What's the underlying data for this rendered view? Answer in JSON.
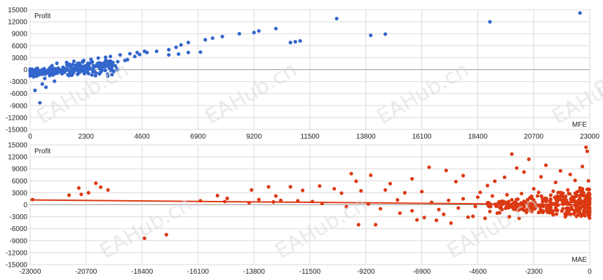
{
  "watermark_text": "EAHub.cn",
  "chart_data": [
    {
      "type": "scatter",
      "xlabel": "MFE",
      "ylabel": "Profit",
      "xlim": [
        0,
        23000
      ],
      "ylim": [
        -15000,
        15000
      ],
      "x_ticks": [
        "0",
        "2300",
        "4600",
        "6900",
        "9200",
        "11500",
        "13800",
        "16100",
        "18400",
        "20700",
        "23000"
      ],
      "y_ticks": [
        "15000",
        "12000",
        "9000",
        "6000",
        "3000",
        "0",
        "-3000",
        "-6000",
        "-9000",
        "-12000",
        "-15000"
      ],
      "grid": true,
      "color": "#3366cc",
      "points": [
        [
          220,
          -400
        ],
        [
          300,
          -300
        ],
        [
          350,
          -350
        ],
        [
          500,
          -600
        ],
        [
          700,
          -800
        ],
        [
          900,
          -900
        ],
        [
          600,
          -2200
        ],
        [
          800,
          -1500
        ],
        [
          200,
          -5200
        ],
        [
          500,
          -3600
        ],
        [
          1000,
          -2900
        ],
        [
          400,
          -8300
        ],
        [
          650,
          -4400
        ],
        [
          300,
          -1100
        ],
        [
          150,
          -1800
        ],
        [
          1200,
          -500
        ],
        [
          1600,
          -200
        ],
        [
          1900,
          500
        ],
        [
          1300,
          -1000
        ],
        [
          900,
          1000
        ],
        [
          2100,
          800
        ],
        [
          2600,
          1000
        ],
        [
          3000,
          1200
        ],
        [
          3600,
          2000
        ],
        [
          4000,
          2500
        ],
        [
          4300,
          3300
        ],
        [
          4500,
          3800
        ],
        [
          4800,
          4300
        ],
        [
          5200,
          4600
        ],
        [
          5700,
          5000
        ],
        [
          6000,
          5600
        ],
        [
          6200,
          6200
        ],
        [
          6500,
          6800
        ],
        [
          7200,
          7500
        ],
        [
          7500,
          7900
        ],
        [
          7900,
          8300
        ],
        [
          8600,
          9000
        ],
        [
          9200,
          9300
        ],
        [
          9400,
          9700
        ],
        [
          10100,
          10300
        ],
        [
          5700,
          3700
        ],
        [
          6100,
          3900
        ],
        [
          6500,
          4300
        ],
        [
          7000,
          4400
        ],
        [
          3900,
          2300
        ],
        [
          3400,
          1800
        ],
        [
          2800,
          1500
        ],
        [
          2400,
          1200
        ],
        [
          10700,
          6800
        ],
        [
          10900,
          7000
        ],
        [
          11100,
          7200
        ],
        [
          12600,
          12800
        ],
        [
          14000,
          8600
        ],
        [
          14600,
          8900
        ],
        [
          18900,
          12000
        ],
        [
          22600,
          14200
        ],
        [
          1100,
          1600
        ],
        [
          1500,
          1800
        ],
        [
          1800,
          2100
        ],
        [
          2200,
          2300
        ],
        [
          2500,
          2600
        ],
        [
          2800,
          2900
        ],
        [
          3100,
          3100
        ],
        [
          3300,
          3300
        ],
        [
          3700,
          3700
        ],
        [
          4100,
          4000
        ],
        [
          4400,
          4300
        ],
        [
          4700,
          4600
        ]
      ]
    },
    {
      "type": "scatter",
      "xlabel": "MAE",
      "ylabel": "Profit",
      "xlim": [
        -23000,
        0
      ],
      "ylim": [
        -15000,
        15000
      ],
      "x_ticks": [
        "-23000",
        "-20700",
        "-18400",
        "-16100",
        "-13800",
        "-11500",
        "-9200",
        "-6900",
        "-4600",
        "-2300",
        "0"
      ],
      "y_ticks": [
        "15000",
        "12000",
        "9000",
        "6000",
        "3000",
        "0",
        "-3000",
        "-6000",
        "-9000",
        "-12000",
        "-15000"
      ],
      "grid": true,
      "color": "#dc3912",
      "trendline": [
        [
          -23000,
          1200
        ],
        [
          0,
          0
        ]
      ],
      "points": [
        [
          -22900,
          1300
        ],
        [
          -21400,
          2400
        ],
        [
          -21000,
          4200
        ],
        [
          -20900,
          2600
        ],
        [
          -20600,
          3000
        ],
        [
          -20300,
          5400
        ],
        [
          -20100,
          4400
        ],
        [
          -19800,
          3700
        ],
        [
          -18300,
          -8400
        ],
        [
          -17400,
          -7500
        ],
        [
          -15300,
          2300
        ],
        [
          -14900,
          1600
        ],
        [
          -13900,
          3700
        ],
        [
          -13600,
          1300
        ],
        [
          -13200,
          4500
        ],
        [
          -12900,
          2200
        ],
        [
          -12700,
          1100
        ],
        [
          -12300,
          4500
        ],
        [
          -11800,
          3600
        ],
        [
          -11400,
          800
        ],
        [
          -11100,
          4700
        ],
        [
          -10500,
          4000
        ],
        [
          -10200,
          2900
        ],
        [
          -9800,
          7800
        ],
        [
          -9600,
          5900
        ],
        [
          -9500,
          -5000
        ],
        [
          -9400,
          3500
        ],
        [
          -9000,
          7400
        ],
        [
          -8800,
          -5000
        ],
        [
          -8400,
          3700
        ],
        [
          -8200,
          5300
        ],
        [
          -7900,
          1200
        ],
        [
          -7600,
          3000
        ],
        [
          -7300,
          6500
        ],
        [
          -7100,
          -3800
        ],
        [
          -6900,
          3300
        ],
        [
          -6600,
          9400
        ],
        [
          -6300,
          -3900
        ],
        [
          -5900,
          8600
        ],
        [
          -5700,
          -4600
        ],
        [
          -5500,
          5800
        ],
        [
          -5200,
          7300
        ],
        [
          -4800,
          -2900
        ],
        [
          -4500,
          3100
        ],
        [
          -4200,
          4800
        ],
        [
          -3900,
          5900
        ],
        [
          -3700,
          -2000
        ],
        [
          -3500,
          6900
        ],
        [
          -3200,
          12700
        ],
        [
          -3000,
          9200
        ],
        [
          -2900,
          -3400
        ],
        [
          -2700,
          8200
        ],
        [
          -2500,
          11400
        ],
        [
          -2300,
          4000
        ],
        [
          -2000,
          7000
        ],
        [
          -1800,
          9900
        ],
        [
          -1600,
          2400
        ],
        [
          -1400,
          5600
        ],
        [
          -1200,
          8500
        ],
        [
          -1000,
          -3000
        ],
        [
          -800,
          7600
        ],
        [
          -600,
          6100
        ],
        [
          -400,
          4200
        ],
        [
          -300,
          9600
        ],
        [
          -150,
          14400
        ],
        [
          -100,
          13400
        ],
        [
          -50,
          6000
        ],
        [
          -250,
          3000
        ],
        [
          -700,
          2000
        ],
        [
          -1100,
          -1000
        ],
        [
          -1500,
          -2500
        ],
        [
          -1900,
          -1700
        ],
        [
          -2600,
          -1900
        ],
        [
          -3300,
          -3000
        ],
        [
          -3800,
          -2100
        ],
        [
          -4300,
          -3400
        ],
        [
          -5000,
          -3100
        ],
        [
          -6000,
          -2400
        ],
        [
          -6800,
          -3200
        ],
        [
          -7300,
          -1500
        ],
        [
          -8600,
          -1000
        ],
        [
          -9100,
          200
        ],
        [
          -10000,
          -500
        ],
        [
          -11000,
          300
        ],
        [
          -12000,
          1000
        ],
        [
          -13000,
          700
        ],
        [
          -14000,
          500
        ],
        [
          -15000,
          800
        ],
        [
          -16000,
          1000
        ],
        [
          -7800,
          -2100
        ],
        [
          -4100,
          -1700
        ],
        [
          -3600,
          -1200
        ],
        [
          -2800,
          -800
        ],
        [
          -2200,
          -600
        ],
        [
          -1700,
          -300
        ],
        [
          -1300,
          -100
        ],
        [
          -900,
          100
        ],
        [
          -500,
          300
        ],
        [
          -200,
          500
        ],
        [
          -3000,
          -1300
        ],
        [
          -2400,
          -900
        ],
        [
          -1900,
          -400
        ],
        [
          -1500,
          200
        ],
        [
          -1000,
          600
        ],
        [
          -700,
          900
        ],
        [
          -400,
          1200
        ],
        [
          -150,
          1600
        ],
        [
          -5400,
          -800
        ],
        [
          -4700,
          -400
        ],
        [
          -6200,
          -1200
        ],
        [
          -6500,
          600
        ],
        [
          -5800,
          1100
        ],
        [
          -5200,
          1500
        ],
        [
          -4600,
          1900
        ],
        [
          -4000,
          2200
        ],
        [
          -3400,
          2500
        ],
        [
          -2800,
          2800
        ],
        [
          -2100,
          3100
        ],
        [
          -1500,
          3400
        ],
        [
          -900,
          3700
        ],
        [
          -300,
          4000
        ]
      ]
    }
  ]
}
